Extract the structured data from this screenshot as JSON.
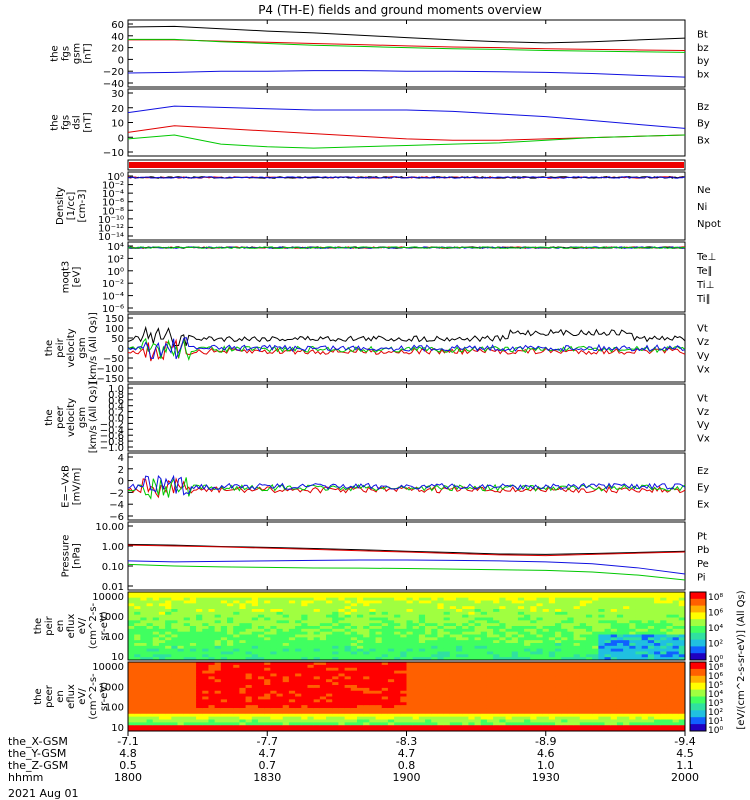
{
  "title": "P4 (TH-E) fields and ground moments overview",
  "date": "2021 Aug 01",
  "time_axis": {
    "ticks": [
      "1800",
      "1830",
      "1900",
      "1930",
      "2000"
    ],
    "rows": [
      {
        "label": "the_X-GSM",
        "values": [
          "-7.1",
          "-7.7",
          "-8.3",
          "-8.9",
          "-9.4"
        ]
      },
      {
        "label": "the_Y-GSM",
        "values": [
          "4.8",
          "4.7",
          "4.7",
          "4.6",
          "4.5"
        ]
      },
      {
        "label": "the_Z-GSM",
        "values": [
          "0.5",
          "0.7",
          "0.8",
          "1.0",
          "1.1"
        ]
      },
      {
        "label": "hhmm",
        "values": [
          "1800",
          "1830",
          "1900",
          "1930",
          "2000"
        ]
      }
    ]
  },
  "colorbar": {
    "label": "[eV/(cm^2-s-sr-eV)] (All Qs)",
    "ticks_top": [
      "10⁸",
      "10⁶",
      "10⁴",
      "10²",
      "10⁰"
    ],
    "ticks_bottom": [
      "10⁸",
      "10⁶",
      "10⁵",
      "10⁴",
      "10³",
      "10²",
      "10¹",
      "10⁰"
    ]
  },
  "chart_data": [
    {
      "type": "line",
      "panel": "fgs gsm",
      "ylabel": [
        "the",
        "fgs",
        "gsm",
        "[nT]"
      ],
      "yticks": [
        "60",
        "40",
        "20",
        "0",
        "−20",
        "−40"
      ],
      "ylim": [
        -40,
        60
      ],
      "x": [
        0,
        10,
        20,
        30,
        40,
        50,
        60,
        70,
        80,
        90,
        100,
        110,
        120
      ],
      "series": [
        {
          "name": "Bt",
          "color": "#000000",
          "values": [
            55,
            56,
            52,
            48,
            45,
            41,
            37,
            33,
            30,
            28,
            30,
            33,
            36
          ]
        },
        {
          "name": "bz",
          "color": "#e00000",
          "values": [
            33,
            33,
            31,
            29,
            27,
            25,
            23,
            21,
            20,
            18,
            17,
            16,
            15
          ]
        },
        {
          "name": "by",
          "color": "#00c800",
          "values": [
            34,
            34,
            30,
            27,
            24,
            22,
            20,
            18,
            17,
            15,
            14,
            13,
            12
          ]
        },
        {
          "name": "bx",
          "color": "#1010e0",
          "values": [
            -23,
            -22,
            -20,
            -20,
            -19,
            -19,
            -20,
            -20,
            -21,
            -22,
            -24,
            -27,
            -30
          ]
        }
      ]
    },
    {
      "type": "line",
      "panel": "fgs dsl",
      "ylabel": [
        "the",
        "fgs",
        "dsl",
        "[nT]"
      ],
      "yticks": [
        "30",
        "20",
        "10",
        "0",
        "−10"
      ],
      "ylim": [
        -15,
        30
      ],
      "x": [
        0,
        10,
        20,
        30,
        40,
        50,
        60,
        70,
        80,
        90,
        100,
        110,
        120
      ],
      "series": [
        {
          "name": "Bz",
          "color": "#e00000",
          "values": [
            0,
            5,
            3,
            1,
            -1,
            -3,
            -5,
            -6,
            -6,
            -5,
            -4,
            -3,
            -2
          ]
        },
        {
          "name": "By",
          "color": "#00c800",
          "values": [
            -5,
            -2,
            -9,
            -11,
            -12,
            -11,
            -10,
            -9,
            -8,
            -6,
            -4,
            -3,
            -2
          ]
        },
        {
          "name": "Bx",
          "color": "#1010e0",
          "values": [
            15,
            20,
            19,
            18,
            17,
            17,
            17,
            16,
            14,
            12,
            9,
            6,
            3
          ]
        }
      ]
    },
    {
      "type": "line",
      "panel": "density",
      "ylabel": [
        "Density",
        "[1/cc]",
        "[cm-3]"
      ],
      "yticks": [
        "10⁰",
        "10⁻²",
        "10⁻⁴",
        "10⁻⁶",
        "10⁻⁸",
        "10⁻¹⁰",
        "10⁻¹²",
        "10⁻¹⁴"
      ],
      "series": [
        {
          "name": "Ne",
          "color": "#e00000"
        },
        {
          "name": "Ni",
          "color": "#000000"
        },
        {
          "name": "Npot",
          "color": "#1010e0"
        }
      ]
    },
    {
      "type": "line",
      "panel": "temperature",
      "ylabel": [
        "moqt3",
        "[eV]"
      ],
      "yticks": [
        "10⁴",
        "10²",
        "10⁰",
        "10⁻²",
        "10⁻⁴",
        "10⁻⁶"
      ],
      "series": [
        {
          "name": "Te⊥",
          "color": "#e00000"
        },
        {
          "name": "Te∥",
          "color": "#000000"
        },
        {
          "name": "Ti⊥",
          "color": "#1010e0"
        },
        {
          "name": "Ti∥",
          "color": "#00c800"
        }
      ]
    },
    {
      "type": "line",
      "panel": "peir velocity",
      "ylabel": [
        "the",
        "peir",
        "velocity",
        "gsm",
        "[km/s (All Qs)]"
      ],
      "yticks": [
        "150",
        "100",
        "50",
        "0",
        "−50",
        "−100",
        "−150"
      ],
      "ylim": [
        -150,
        150
      ],
      "series": [
        {
          "name": "Vt",
          "color": "#000000"
        },
        {
          "name": "Vz",
          "color": "#e00000"
        },
        {
          "name": "Vy",
          "color": "#00c800"
        },
        {
          "name": "Vx",
          "color": "#1010e0"
        }
      ]
    },
    {
      "type": "line",
      "panel": "peer velocity",
      "ylabel": [
        "the",
        "peer",
        "velocity",
        "gsm",
        "[km/s (All Qs)]"
      ],
      "yticks": [
        "1.0",
        "0.8",
        "0.6",
        "0.4",
        "0.2",
        "0.0",
        "−0.2",
        "−0.4",
        "−0.6",
        "−0.8",
        "−1.0"
      ],
      "ylim": [
        -1,
        1
      ],
      "series": [
        {
          "name": "Vt",
          "color": "#000000"
        },
        {
          "name": "Vz",
          "color": "#e00000"
        },
        {
          "name": "Vy",
          "color": "#00c800"
        },
        {
          "name": "Vx",
          "color": "#1010e0"
        }
      ]
    },
    {
      "type": "line",
      "panel": "E = -VxB",
      "ylabel": [
        "E=−VxB",
        "[mV/m]"
      ],
      "yticks": [
        "4",
        "2",
        "0",
        "−2",
        "−4",
        "−6"
      ],
      "ylim": [
        -6,
        4
      ],
      "series": [
        {
          "name": "Ez",
          "color": "#e00000"
        },
        {
          "name": "Ey",
          "color": "#00c800"
        },
        {
          "name": "Ex",
          "color": "#1010e0"
        }
      ]
    },
    {
      "type": "line",
      "panel": "pressure",
      "yscale": "log",
      "ylabel": [
        "Pressure",
        "[nPa]"
      ],
      "yticks": [
        "10.00",
        "1.00",
        "0.10",
        "0.01"
      ],
      "ylim": [
        0.01,
        10
      ],
      "x": [
        0,
        10,
        20,
        30,
        40,
        50,
        60,
        70,
        80,
        90,
        100,
        110,
        120
      ],
      "series": [
        {
          "name": "Pt",
          "color": "#000000",
          "values": [
            1.2,
            1.1,
            0.95,
            0.85,
            0.75,
            0.65,
            0.55,
            0.47,
            0.4,
            0.38,
            0.42,
            0.48,
            0.55
          ]
        },
        {
          "name": "Pb",
          "color": "#e00000",
          "values": [
            1.1,
            1.0,
            0.9,
            0.78,
            0.68,
            0.58,
            0.5,
            0.42,
            0.36,
            0.33,
            0.38,
            0.44,
            0.5
          ]
        },
        {
          "name": "Pe",
          "color": "#00c800",
          "values": [
            0.12,
            0.1,
            0.09,
            0.085,
            0.08,
            0.078,
            0.075,
            0.07,
            0.065,
            0.06,
            0.05,
            0.035,
            0.02
          ]
        },
        {
          "name": "Pi",
          "color": "#1010e0",
          "values": [
            0.18,
            0.16,
            0.17,
            0.18,
            0.19,
            0.2,
            0.2,
            0.19,
            0.18,
            0.16,
            0.13,
            0.08,
            0.04
          ]
        }
      ]
    },
    {
      "type": "heatmap",
      "panel": "peir en eflux",
      "ylabel": [
        "the",
        "peir",
        "en",
        "eflux",
        "eV/",
        "(cm^2-s-",
        "sr-eV)"
      ],
      "yticks": [
        "10000",
        "1000",
        "100",
        "10"
      ],
      "yscale": "log"
    },
    {
      "type": "heatmap",
      "panel": "peer en eflux",
      "ylabel": [
        "the",
        "peer",
        "en",
        "eflux",
        "eV/",
        "(cm^2-s-",
        "sr-eV)"
      ],
      "yticks": [
        "10000",
        "1000",
        "100",
        "10"
      ],
      "yscale": "log"
    }
  ]
}
